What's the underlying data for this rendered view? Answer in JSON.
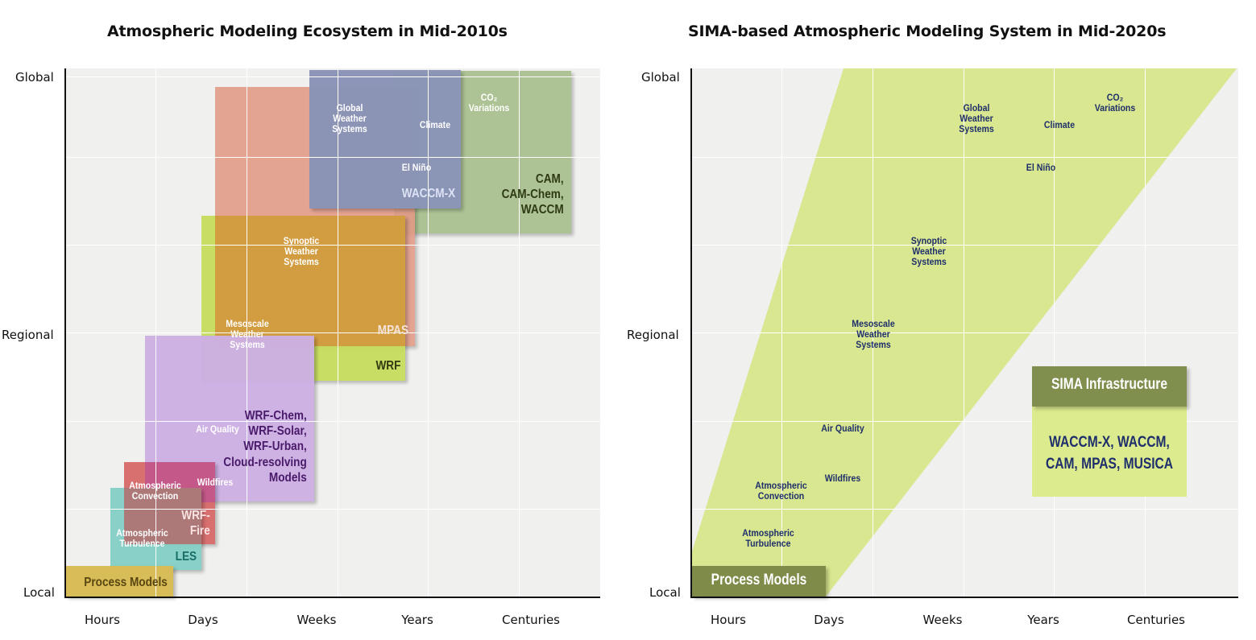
{
  "left": {
    "title": "Atmospheric Modeling Ecosystem in Mid-2010s",
    "y_labels": {
      "global": "Global",
      "regional": "Regional",
      "local": "Local"
    },
    "x_labels": [
      "Hours",
      "Days",
      "Weeks",
      "Years",
      "Centuries"
    ],
    "models": {
      "process_models": "Process Models",
      "les": "LES",
      "wrf_fire": "WRF-\nFire",
      "wrf_chem": "WRF-Chem,\nWRF-Solar,\nWRF-Urban,\nCloud-resolving\nModels",
      "wrf": "WRF",
      "mpas": "MPAS",
      "waccm_x": "WACCM-X",
      "cam": "CAM,\nCAM-Chem,\nWACCM"
    },
    "phenomena": {
      "global_weather": "Global\nWeather\nSystems",
      "climate": "Climate",
      "co2": "CO₂\nVariations",
      "el_nino": "El Niño",
      "synoptic": "Synoptic\nWeather\nSystems",
      "mesoscale": "Mesoscale\nWeather\nSystems",
      "air_quality": "Air Quality",
      "wildfires": "Wildfires",
      "convection": "Atmospheric\nConvection",
      "turbulence": "Atmospheric\nTurbulence"
    },
    "colors": {
      "process": "#d8bc58",
      "les": "#84cfc6",
      "fire": "#d76a6a",
      "chem": "#cdb0e4",
      "wrf": "#c5dc5c",
      "mpas": "#e39a86",
      "waccmx": "#8a94b8",
      "cam": "#a8c08e"
    }
  },
  "right": {
    "title": "SIMA-based Atmospheric Modeling System in Mid-2020s",
    "y_labels": {
      "global": "Global",
      "regional": "Regional",
      "local": "Local"
    },
    "x_labels": [
      "Hours",
      "Days",
      "Weeks",
      "Years",
      "Centuries"
    ],
    "phenomena": {
      "global_weather": "Global\nWeather\nSystems",
      "climate": "Climate",
      "co2": "CO₂\nVariations",
      "el_nino": "El Niño",
      "synoptic": "Synoptic\nWeather\nSystems",
      "mesoscale": "Mesoscale\nWeather\nSystems",
      "air_quality": "Air Quality",
      "wildfires": "Wildfires",
      "convection": "Atmospheric\nConvection",
      "turbulence": "Atmospheric\nTurbulence"
    },
    "sima_header": "SIMA Infrastructure",
    "sima_models": "WACCM-X, WACCM,\nCAM, MPAS, MUSICA",
    "process_models": "Process Models",
    "colors": {
      "band": "#d6e68a",
      "sima_header": "#808e4e",
      "sima_body": "#dceb8e",
      "process": "#7f8b48",
      "text": "#1f2f6b"
    }
  }
}
